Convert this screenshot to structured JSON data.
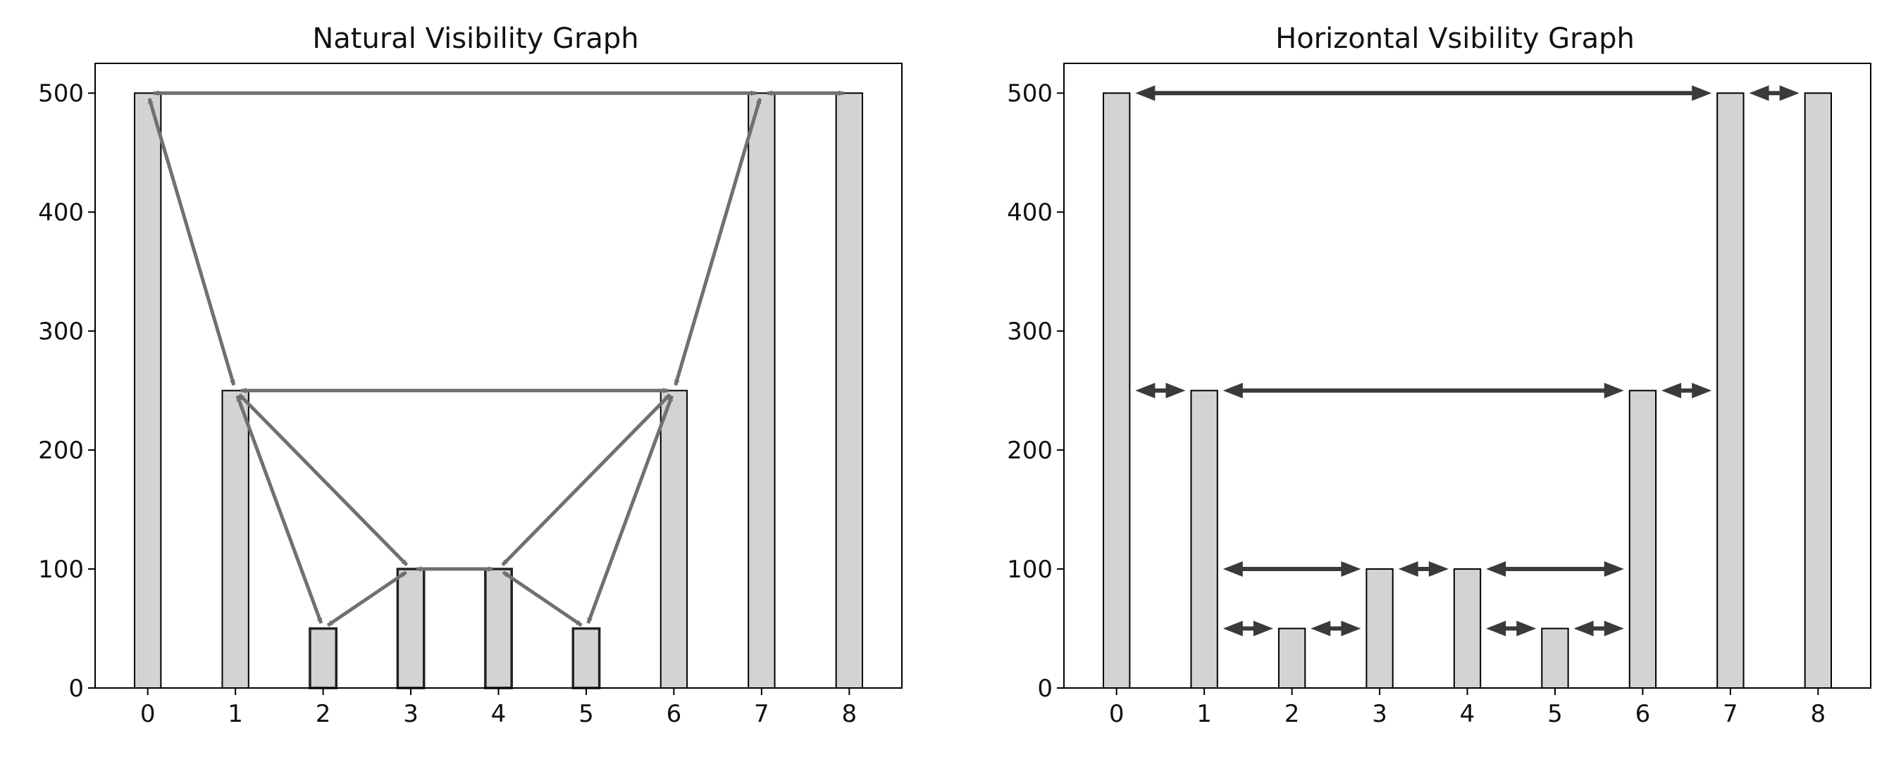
{
  "chart_data": [
    {
      "type": "bar",
      "title": "Natural Visibility Graph",
      "xlabel": "",
      "ylabel": "",
      "categories": [
        "0",
        "1",
        "2",
        "3",
        "4",
        "5",
        "6",
        "7",
        "8"
      ],
      "values": [
        500,
        250,
        50,
        100,
        100,
        50,
        250,
        500,
        500
      ],
      "ylim": [
        0,
        525
      ],
      "xlim": [
        -0.6,
        8.6
      ],
      "yticks": [
        0,
        100,
        200,
        300,
        400,
        500
      ],
      "grid": false,
      "bar_color": "#d3d3d3",
      "edge_color": "#000000",
      "edge_color_2": "#222222",
      "arrow_color": "#707070",
      "edges": [
        [
          0,
          1
        ],
        [
          0,
          7
        ],
        [
          1,
          2
        ],
        [
          1,
          3
        ],
        [
          1,
          6
        ],
        [
          2,
          3
        ],
        [
          3,
          4
        ],
        [
          4,
          5
        ],
        [
          4,
          6
        ],
        [
          5,
          6
        ],
        [
          6,
          7
        ],
        [
          7,
          8
        ]
      ]
    },
    {
      "type": "bar",
      "title": "Horizontal Vsibility Graph",
      "xlabel": "",
      "ylabel": "",
      "categories": [
        "0",
        "1",
        "2",
        "3",
        "4",
        "5",
        "6",
        "7",
        "8"
      ],
      "values": [
        500,
        250,
        50,
        100,
        100,
        50,
        250,
        500,
        500
      ],
      "ylim": [
        0,
        525
      ],
      "xlim": [
        -0.6,
        8.6
      ],
      "yticks": [
        0,
        100,
        200,
        300,
        400,
        500
      ],
      "grid": false,
      "bar_color": "#d3d3d3",
      "edge_color": "#000000",
      "arrow_color": "#3a3a3a",
      "edges": [
        [
          0,
          1
        ],
        [
          0,
          7
        ],
        [
          1,
          2
        ],
        [
          1,
          3
        ],
        [
          1,
          6
        ],
        [
          2,
          3
        ],
        [
          3,
          4
        ],
        [
          4,
          5
        ],
        [
          4,
          6
        ],
        [
          5,
          6
        ],
        [
          6,
          7
        ],
        [
          7,
          8
        ]
      ]
    }
  ]
}
